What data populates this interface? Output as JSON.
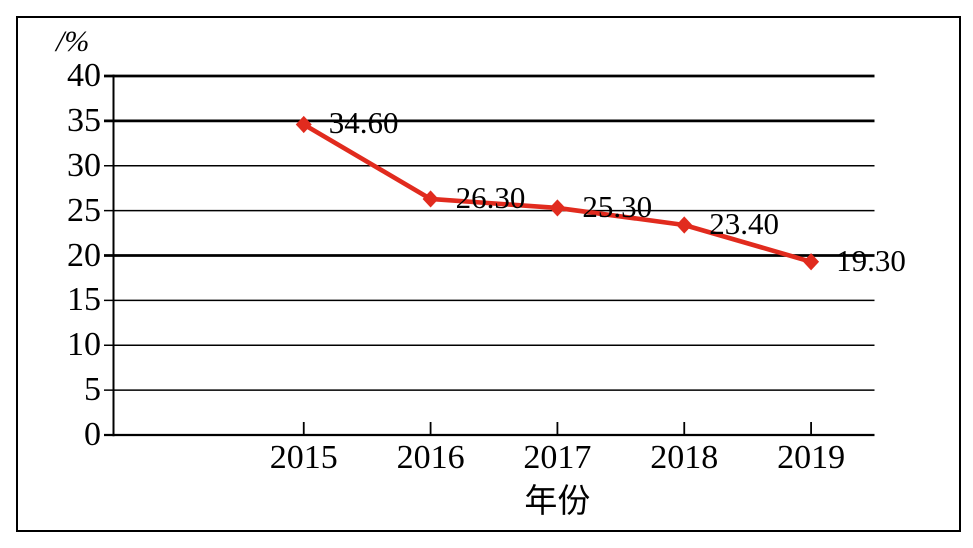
{
  "chart_data": {
    "type": "line",
    "title": "",
    "categories": [
      "2015",
      "2016",
      "2017",
      "2018",
      "2019"
    ],
    "series": [
      {
        "name": "",
        "values": [
          34.6,
          26.3,
          25.3,
          23.4,
          19.3
        ],
        "point_labels": [
          "34.60",
          "26.30",
          "25.30",
          "23.40",
          "19.30"
        ],
        "color": "#e12b1e",
        "marker": "diamond"
      }
    ],
    "xlabel": "年份",
    "ylabel": "/%",
    "ylim": [
      0,
      40
    ],
    "y_tick_labels": [
      "0",
      "5",
      "10",
      "15",
      "20",
      "25",
      "30",
      "35",
      "40"
    ],
    "grid": "horizontal",
    "legend": "none",
    "emphasized_gridlines": [
      40,
      35,
      20
    ],
    "axis_color": "#000000",
    "text_color": "#000000",
    "frame_color": "#000000",
    "background_color": "#ffffff"
  }
}
